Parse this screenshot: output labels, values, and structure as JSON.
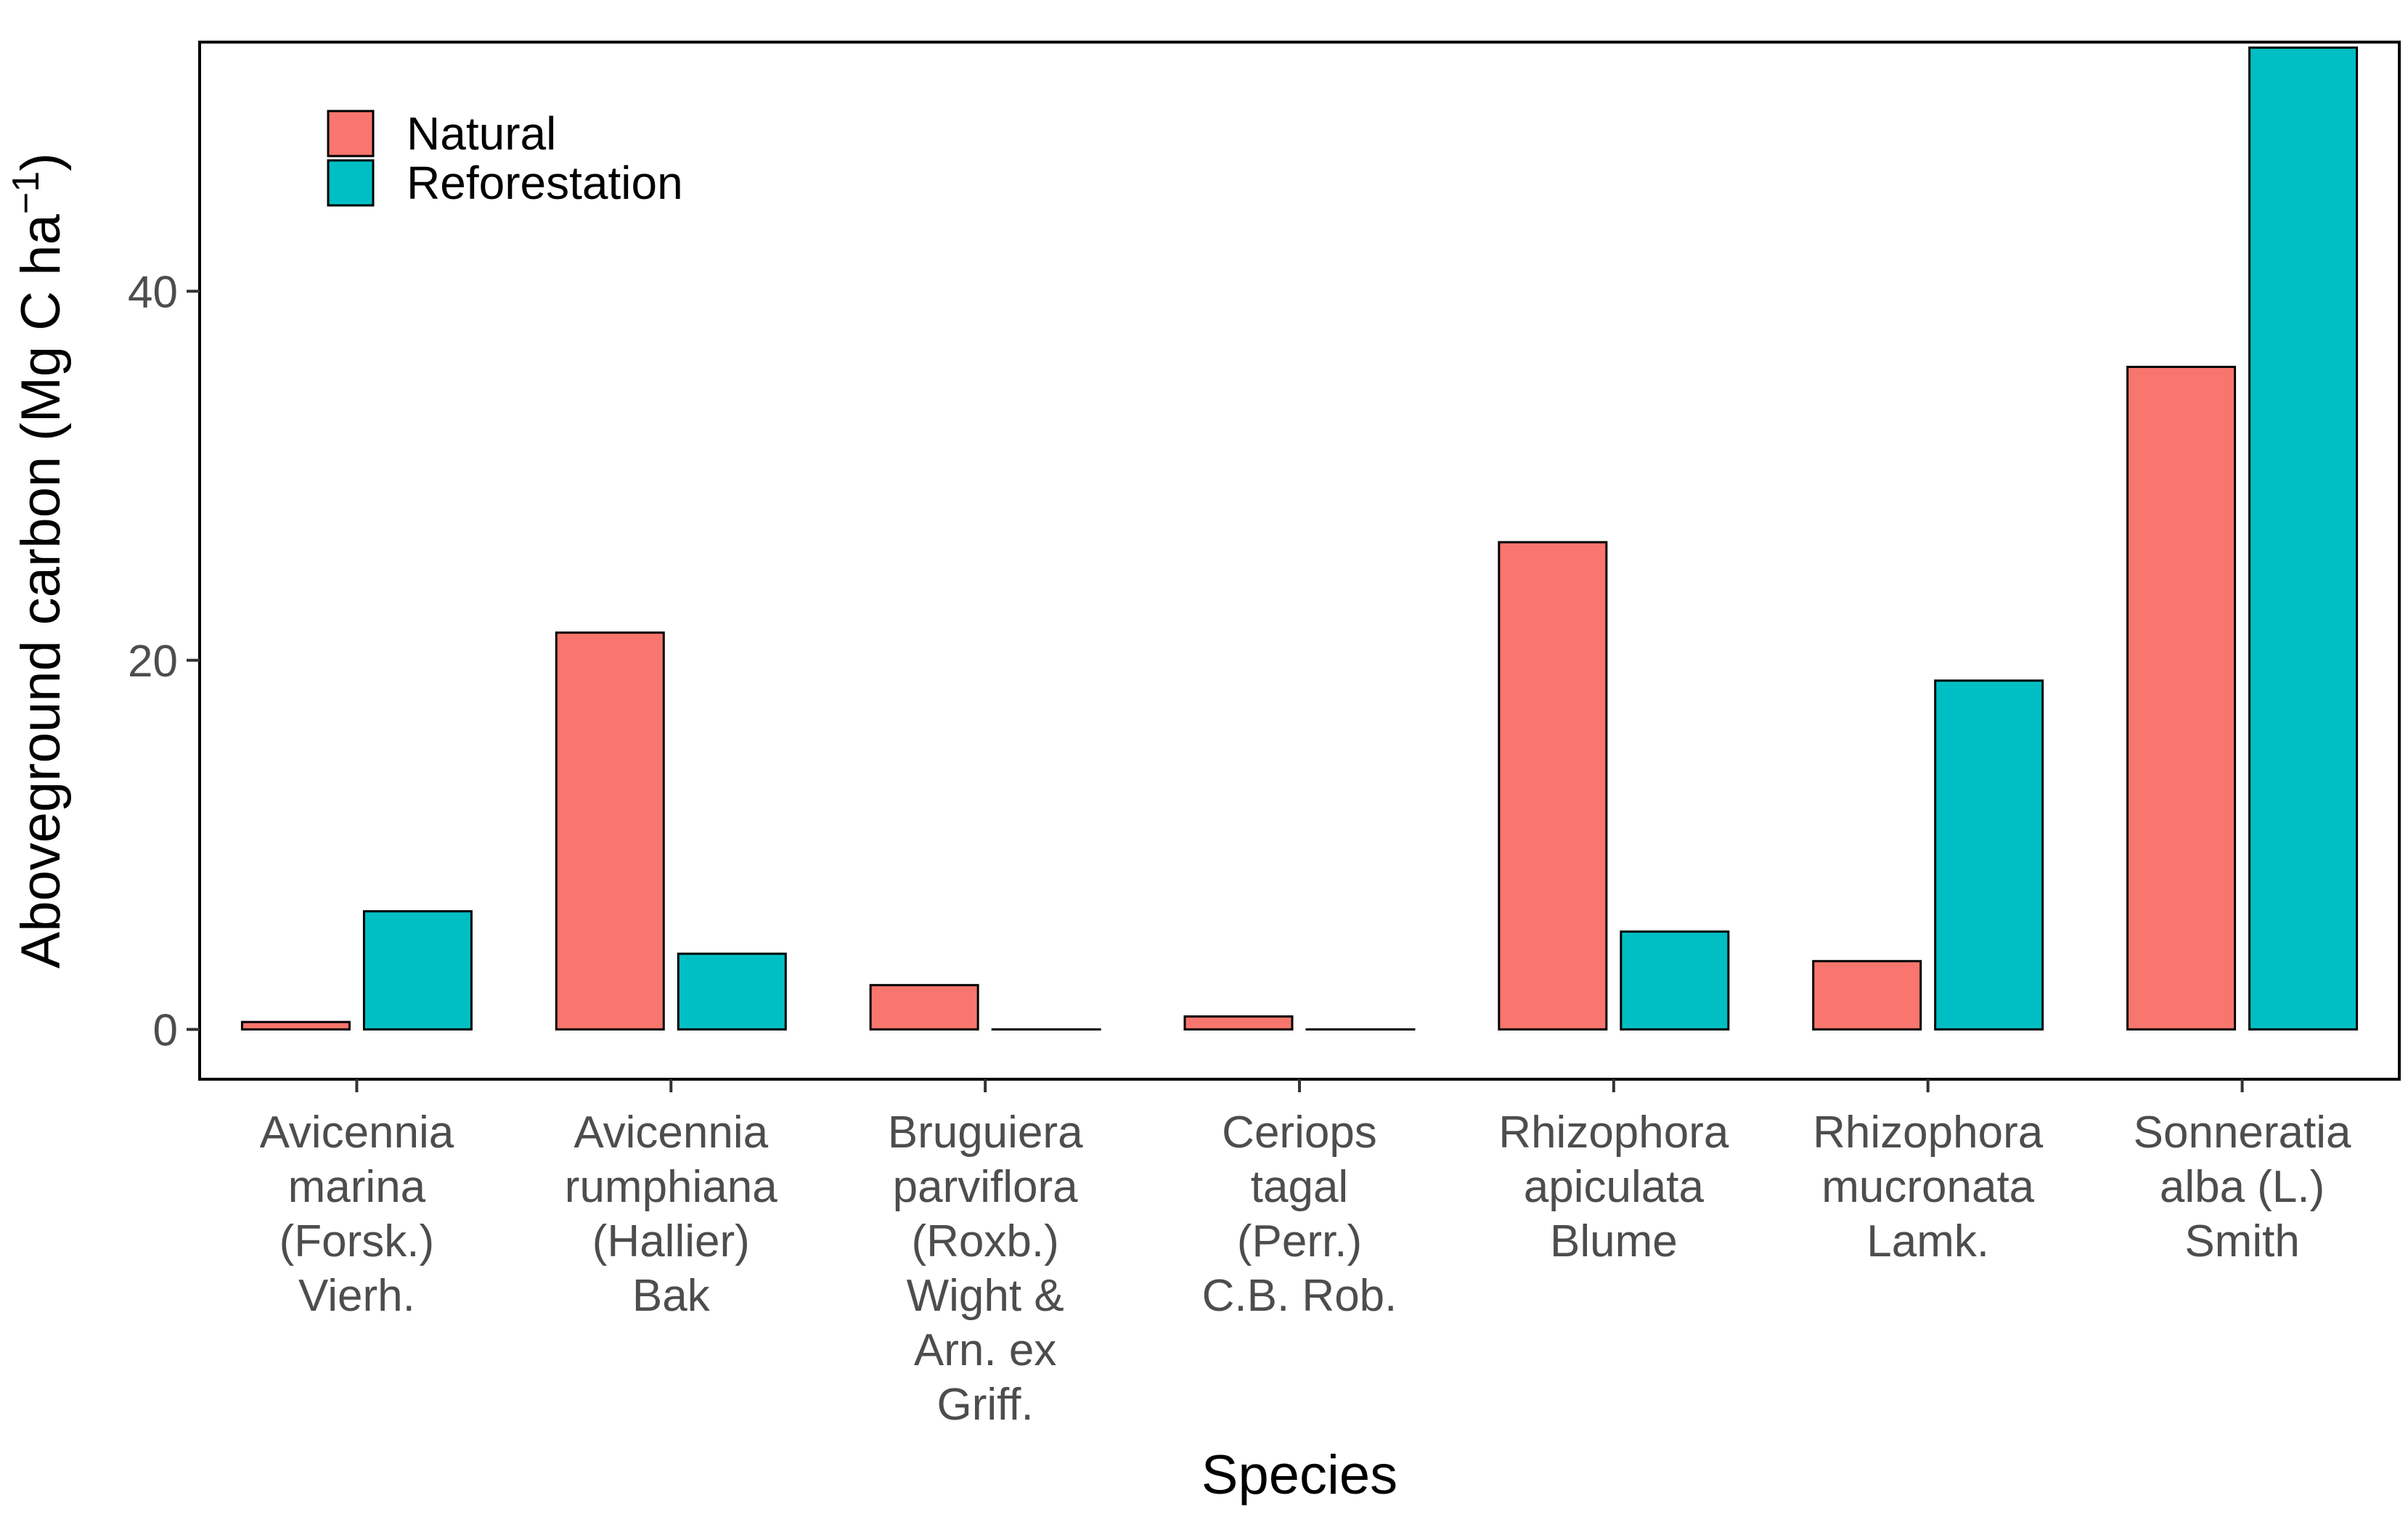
{
  "chart_data": {
    "type": "bar",
    "title": "",
    "xlabel": "Species",
    "ylabel": "Aboveground carbon (Mg C ha",
    "ylabel_superscript": "−1",
    "ylabel_close": ")",
    "ylim": [
      -2.7,
      53.5
    ],
    "yticks": [
      0,
      20,
      40
    ],
    "grid": false,
    "legend_position": "top-left",
    "categories": [
      [
        "Avicennia",
        "marina",
        "(Forsk.)",
        "Vierh."
      ],
      [
        "Avicennia",
        "rumphiana",
        "(Hallier)",
        "Bak"
      ],
      [
        "Bruguiera",
        "parviflora",
        "(Roxb.)",
        "Wight &",
        "Arn. ex",
        "Griff."
      ],
      [
        "Ceriops",
        "tagal",
        "(Perr.)",
        "C.B. Rob."
      ],
      [
        "Rhizophora",
        "apiculata",
        "Blume"
      ],
      [
        "Rhizophora",
        "mucronata",
        "Lamk."
      ],
      [
        "Sonneratia",
        "alba (L.)",
        "Smith"
      ]
    ],
    "series": [
      {
        "name": "Natural",
        "color": "#F8766D",
        "values": [
          0.4,
          21.5,
          2.4,
          0.7,
          26.4,
          3.7,
          35.9
        ]
      },
      {
        "name": "Reforestation",
        "color": "#00BFC4",
        "values": [
          6.4,
          4.1,
          0.0,
          0.0,
          5.3,
          18.9,
          53.2
        ]
      }
    ]
  }
}
